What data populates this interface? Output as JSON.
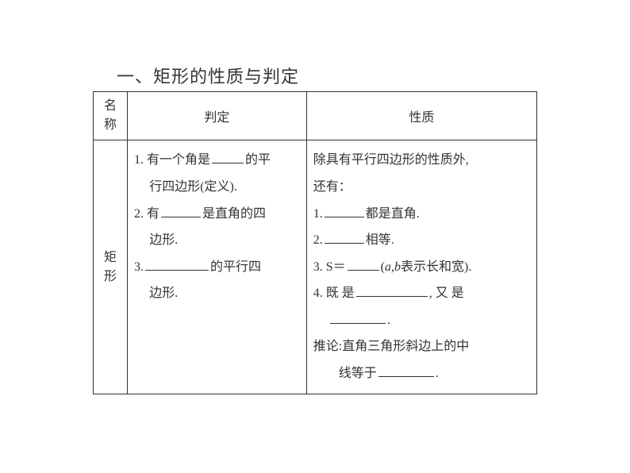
{
  "title": "一、矩形的性质与判定",
  "headers": {
    "name": "名称",
    "judge": "判定",
    "prop": "性质"
  },
  "row_name_1": "矩",
  "row_name_2": "形",
  "judge": {
    "j1a": "1. 有一个角是",
    "j1b": "的平",
    "j1c": "行四边形(定义).",
    "j2a": "2. 有",
    "j2b": "是直角的四",
    "j2c": "边形.",
    "j3a": "3.",
    "j3b": "的平行四",
    "j3c": "边形."
  },
  "prop": {
    "p0a": "除具有平行四边形的性质外,",
    "p0b": "还有：",
    "p1a": "1.",
    "p1b": "都是直角.",
    "p2a": "2.",
    "p2b": "相等.",
    "p3a": "3. S＝",
    "p3b": "(",
    "p3c": "a",
    "p3d": ",",
    "p3e": "b",
    "p3f": "表示长和宽).",
    "p4a": "4. 既 是",
    "p4b": ", 又 是",
    "p4c": ".",
    "p5a": "推论:直角三角形斜边上的中",
    "p5b": "线等于",
    "p5c": "."
  },
  "style": {
    "text_color": "#333333",
    "border_color": "#333333",
    "background": "#ffffff",
    "title_fontsize": 22,
    "cell_fontsize": 16,
    "line_height": 2.1,
    "col_widths": {
      "name": 40,
      "judge": 210,
      "prop": 270
    },
    "blank_widths": {
      "b40": 40,
      "b50": 50,
      "b60": 60,
      "b70": 70,
      "b80": 80,
      "b90": 90
    }
  }
}
